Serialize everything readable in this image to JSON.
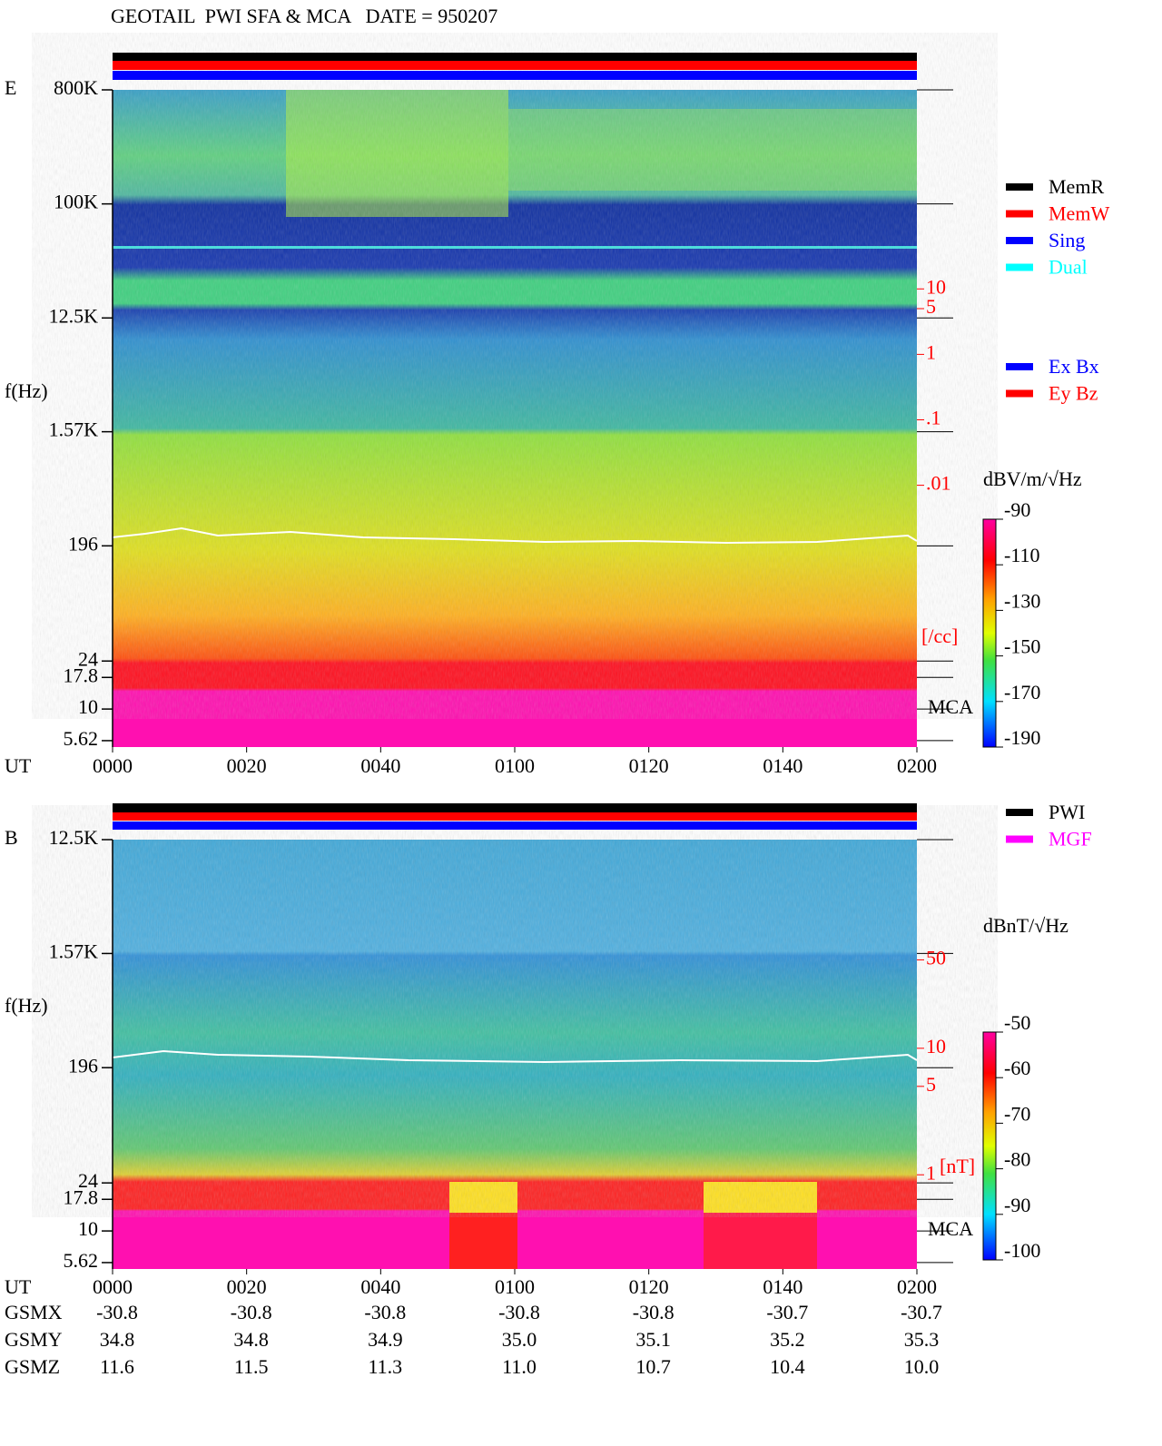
{
  "chart_data": [
    {
      "type": "spectrogram",
      "title": "GEOTAIL  PWI SFA & MCA   DATE = 950207",
      "panel_label": "E",
      "ylabel": "f(Hz)",
      "xlabel": "UT",
      "log_y": true,
      "xlim": [
        0,
        120
      ],
      "xticks": [
        {
          "value": 0,
          "label": "0000"
        },
        {
          "value": 20,
          "label": "0020"
        },
        {
          "value": 40,
          "label": "0040"
        },
        {
          "value": 60,
          "label": "0100"
        },
        {
          "value": 80,
          "label": "0120"
        },
        {
          "value": 100,
          "label": "0140"
        },
        {
          "value": 120,
          "label": "0200"
        }
      ],
      "ylim": [
        5,
        800000
      ],
      "yticks": [
        {
          "value": 800000,
          "label": "800K"
        },
        {
          "value": 100000,
          "label": "100K"
        },
        {
          "value": 12500,
          "label": "12.5K"
        },
        {
          "value": 1570,
          "label": "1.57K"
        },
        196,
        24,
        17.8,
        10,
        5.62
      ],
      "y2label": "[/cc]",
      "y2lim": [
        1e-06,
        11000
      ],
      "y2ticks": [
        10,
        5,
        1,
        {
          "value": 0.1,
          "label": ".1"
        },
        {
          "value": 0.01,
          "label": ".01"
        }
      ],
      "annotation": "MCA",
      "legend": [
        {
          "name": "MemR",
          "color": "#000000"
        },
        {
          "name": "MemW",
          "color": "#ff0000"
        },
        {
          "name": "Sing",
          "color": "#0000ff"
        },
        {
          "name": "Dual",
          "color": "#00ffff"
        }
      ],
      "legend2": [
        {
          "name": "Ex Bx",
          "color": "#0000ff"
        },
        {
          "name": "Ey Bz",
          "color": "#ff0000"
        }
      ],
      "colorbar": {
        "label": "dBV/m/√Hz",
        "lim": [
          -190,
          -90
        ],
        "ticks": [
          -90,
          -110,
          -130,
          -150,
          -170,
          -190
        ]
      }
    },
    {
      "type": "spectrogram",
      "panel_label": "B",
      "ylabel": "f(Hz)",
      "xlabel": "UT",
      "log_y": true,
      "xlim": [
        0,
        120
      ],
      "xticks": [
        {
          "value": 0,
          "label": "0000"
        },
        {
          "value": 20,
          "label": "0020"
        },
        {
          "value": 40,
          "label": "0040"
        },
        {
          "value": 60,
          "label": "0100"
        },
        {
          "value": 80,
          "label": "0120"
        },
        {
          "value": 100,
          "label": "0140"
        },
        {
          "value": 120,
          "label": "0200"
        }
      ],
      "ylim": [
        5,
        12500
      ],
      "yticks": [
        {
          "value": 12500,
          "label": "12.5K"
        },
        {
          "value": 1570,
          "label": "1.57K"
        },
        196,
        24,
        17.8,
        10,
        5.62
      ],
      "y2label": "[nT]",
      "y2lim": [
        0.18,
        446
      ],
      "y2ticks": [
        50,
        10,
        5,
        1
      ],
      "annotation": "MCA",
      "legend": [
        {
          "name": "PWI",
          "color": "#000000"
        },
        {
          "name": "MGF",
          "color": "#ff00ff"
        }
      ],
      "colorbar": {
        "label": "dBnT/√Hz",
        "lim": [
          -100,
          -50
        ],
        "ticks": [
          -50,
          -60,
          -70,
          -80,
          -90,
          -100
        ]
      }
    }
  ],
  "ephemeris": {
    "rows": [
      {
        "label": "GSMX",
        "values": [
          -30.8,
          -30.8,
          -30.8,
          -30.8,
          -30.8,
          -30.7,
          -30.7
        ]
      },
      {
        "label": "GSMY",
        "values": [
          34.8,
          34.8,
          34.9,
          {
            "value": 35,
            "label": "35.0"
          },
          35.1,
          35.2,
          35.3
        ]
      },
      {
        "label": "GSMZ",
        "values": [
          11.6,
          11.5,
          11.3,
          {
            "value": 11,
            "label": "11.0"
          },
          10.7,
          10.4,
          {
            "value": 10,
            "label": "10.0"
          }
        ]
      }
    ]
  }
}
